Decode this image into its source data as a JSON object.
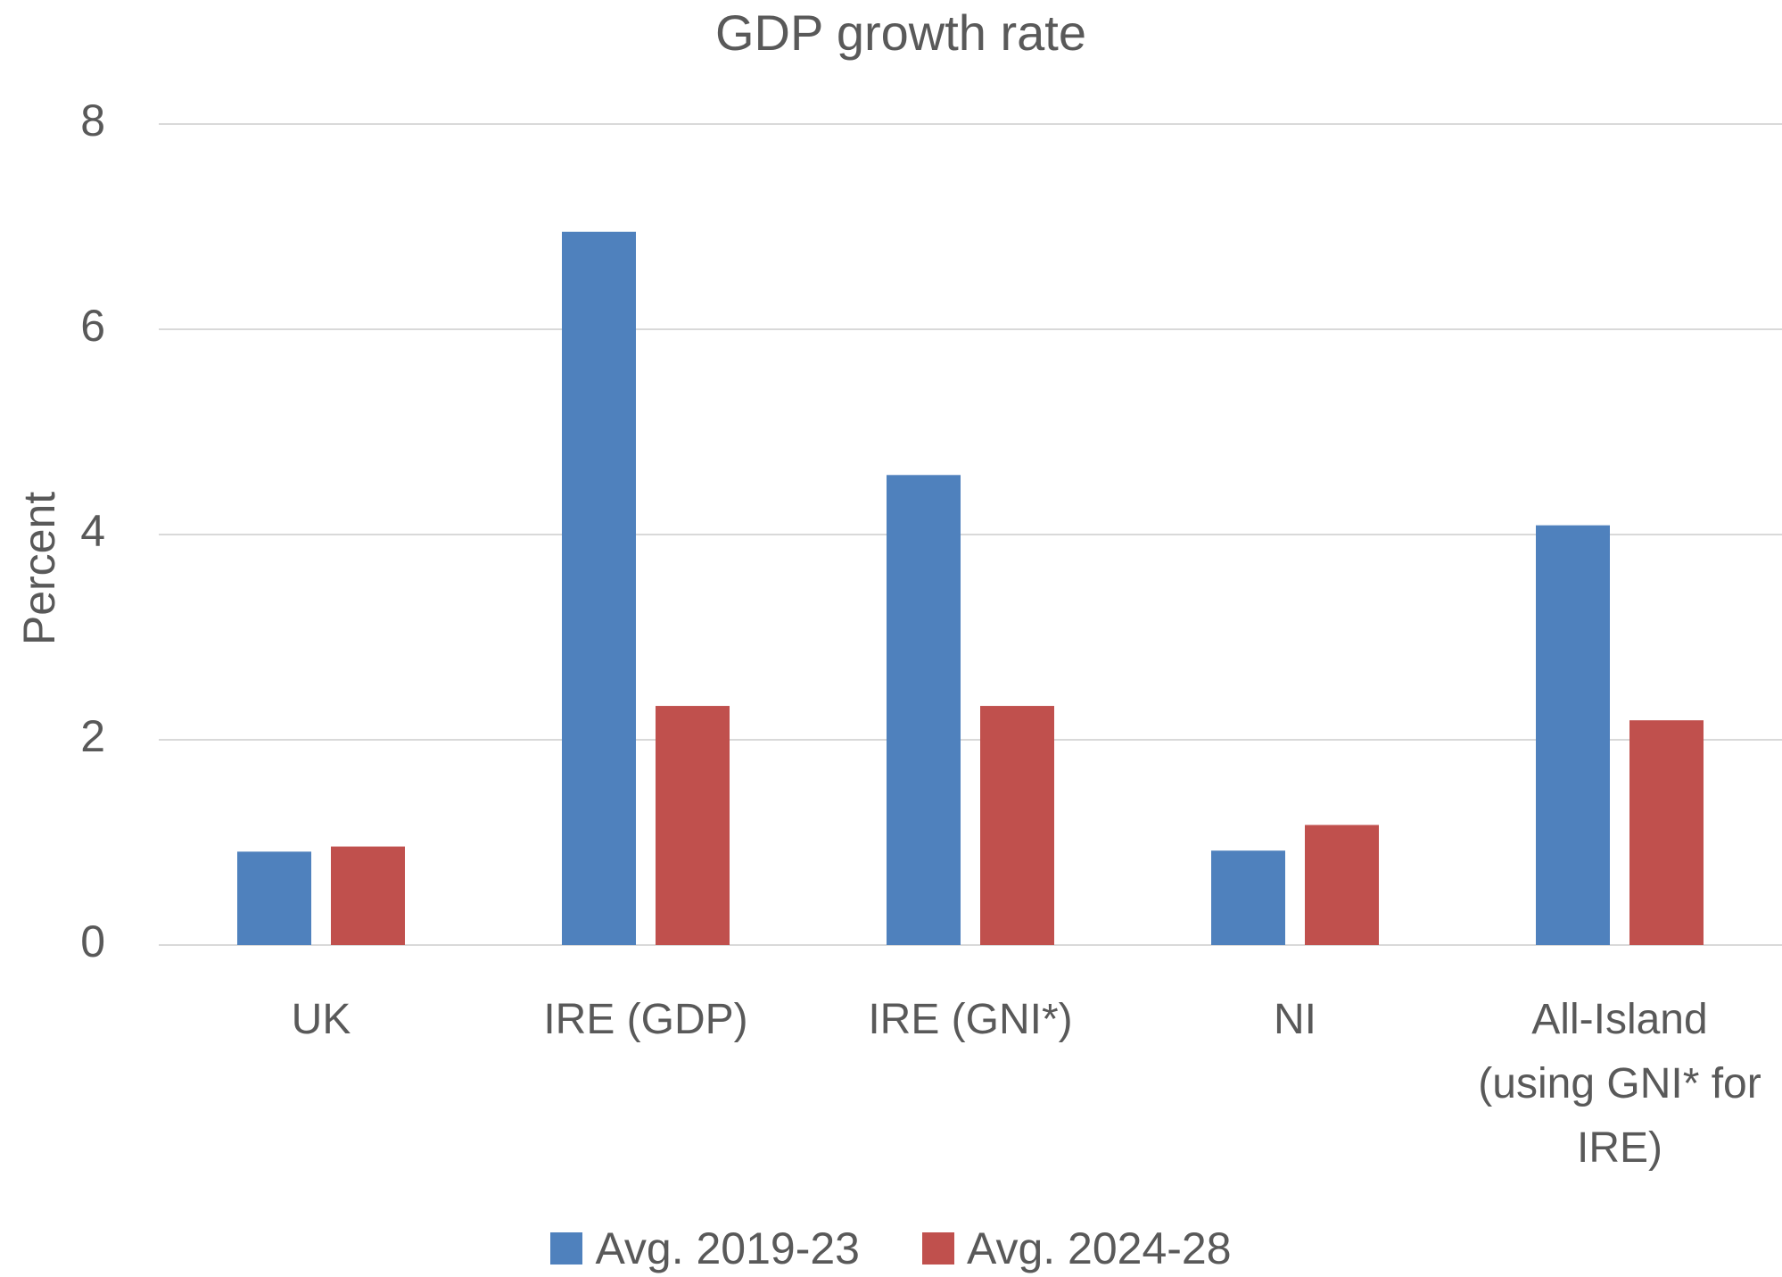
{
  "chart_data": {
    "type": "bar",
    "title": "GDP growth rate",
    "y_label": "Percent",
    "categories": [
      "UK",
      "IRE (GDP)",
      "IRE (GNI*)",
      "NI",
      "All-Island (using GNI* for IRE)"
    ],
    "series": [
      {
        "name": "Avg. 2019-23",
        "color": "#4f81bd",
        "values": [
          0.91,
          6.95,
          4.58,
          0.92,
          4.09
        ]
      },
      {
        "name": "Avg. 2024-28",
        "color": "#c0504d",
        "values": [
          0.96,
          2.33,
          2.33,
          1.17,
          2.19
        ]
      }
    ],
    "ylim": [
      0,
      8
    ],
    "yticks": [
      0,
      2,
      4,
      6,
      8
    ],
    "grid": true,
    "legend": "bottom"
  }
}
